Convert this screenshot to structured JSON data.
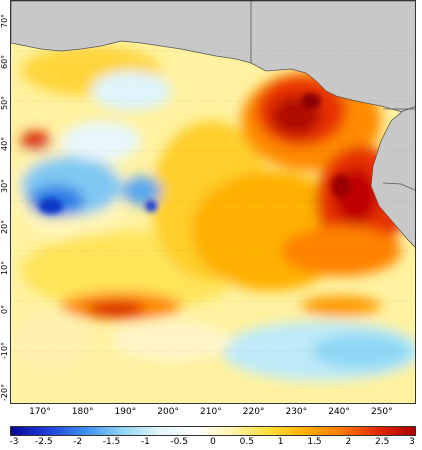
{
  "map": {
    "latitude_ticks": [
      "-20°",
      "-10°",
      "0°",
      "10°",
      "20°",
      "30°",
      "40°",
      "50°",
      "60°",
      "70°"
    ],
    "longitude_ticks": [
      "170°",
      "180°",
      "190°",
      "200°",
      "210°",
      "220°",
      "230°",
      "240°",
      "250°"
    ],
    "lat_range": [
      -23,
      75
    ],
    "lon_range": [
      163,
      258
    ],
    "land_color": "#c8c8c8",
    "coast_color": "#555555"
  },
  "colorbar": {
    "ticks": [
      "-3",
      "-2.5",
      "-2",
      "-1.5",
      "-1",
      "-0.5",
      "0",
      "0.5",
      "1",
      "1.5",
      "2",
      "2.5",
      "3"
    ],
    "range": [
      -3,
      3
    ],
    "colors": [
      "#08079a",
      "#1f3fd6",
      "#3b8ef0",
      "#8fd4f5",
      "#dff4fb",
      "#ffffff",
      "#fff4b0",
      "#ffdf3a",
      "#ffb000",
      "#ff7a00",
      "#e62800",
      "#a80000"
    ]
  }
}
